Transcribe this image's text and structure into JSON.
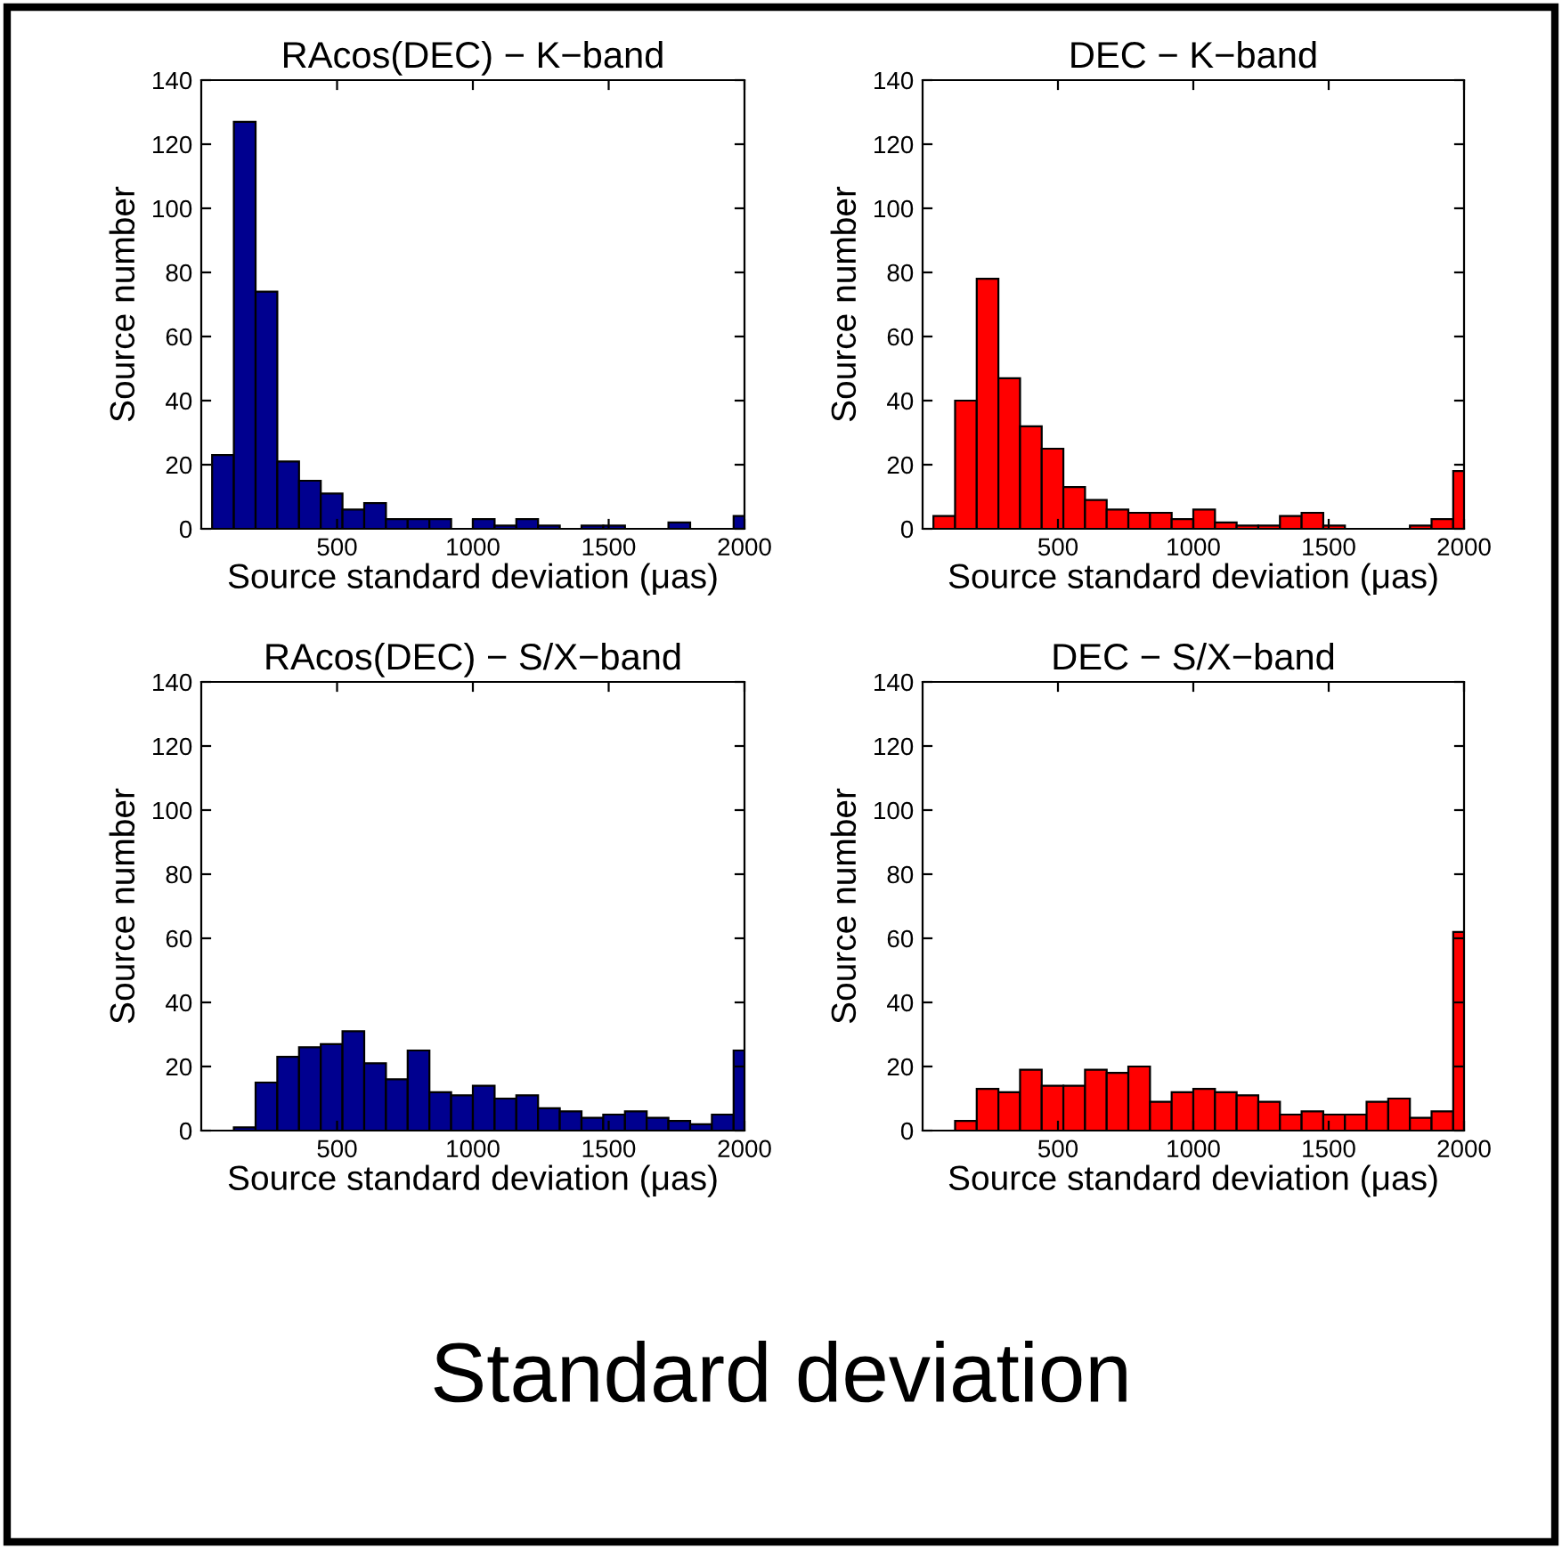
{
  "chart_data": [
    {
      "type": "histogram",
      "title": "RAcos(DEC) − K−band",
      "xlabel": "Source standard deviation (μas)",
      "ylabel": "Source number",
      "color": "#00008f",
      "bins": [
        40,
        120,
        200,
        280,
        360,
        440,
        520,
        600,
        680,
        760,
        840,
        920,
        1000,
        1080,
        1160,
        1240,
        1320,
        1400,
        1480,
        1560,
        1640,
        1720,
        1800,
        1880,
        1960,
        2040
      ],
      "values": [
        23,
        127,
        74,
        21,
        15,
        11,
        6,
        8,
        3,
        3,
        3,
        0,
        3,
        1,
        3,
        1,
        0,
        1,
        1,
        0,
        0,
        2,
        0,
        0,
        4
      ],
      "xlim": [
        0,
        2000
      ],
      "xticks": [
        500,
        1000,
        1500,
        2000
      ],
      "ylim": [
        0,
        140
      ],
      "yticks": [
        0,
        20,
        40,
        60,
        80,
        100,
        120,
        140
      ],
      "grid": false,
      "legend": false
    },
    {
      "type": "histogram",
      "title": "DEC − K−band",
      "xlabel": "Source standard deviation (μas)",
      "ylabel": "Source number",
      "color": "#ff0000",
      "bins": [
        40,
        120,
        200,
        280,
        360,
        440,
        520,
        600,
        680,
        760,
        840,
        920,
        1000,
        1080,
        1160,
        1240,
        1320,
        1400,
        1480,
        1560,
        1640,
        1720,
        1800,
        1880,
        1960,
        2040
      ],
      "values": [
        4,
        40,
        78,
        47,
        32,
        25,
        13,
        9,
        6,
        5,
        5,
        3,
        6,
        2,
        1,
        1,
        4,
        5,
        1,
        0,
        0,
        0,
        1,
        3,
        18
      ],
      "xlim": [
        0,
        2000
      ],
      "xticks": [
        500,
        1000,
        1500,
        2000
      ],
      "ylim": [
        0,
        140
      ],
      "yticks": [
        0,
        20,
        40,
        60,
        80,
        100,
        120,
        140
      ],
      "grid": false,
      "legend": false
    },
    {
      "type": "histogram",
      "title": "RAcos(DEC) − S/X−band",
      "xlabel": "Source standard deviation (μas)",
      "ylabel": "Source number",
      "color": "#00008f",
      "bins": [
        40,
        120,
        200,
        280,
        360,
        440,
        520,
        600,
        680,
        760,
        840,
        920,
        1000,
        1080,
        1160,
        1240,
        1320,
        1400,
        1480,
        1560,
        1640,
        1720,
        1800,
        1880,
        1960,
        2040
      ],
      "values": [
        0,
        1,
        15,
        23,
        26,
        27,
        31,
        21,
        16,
        25,
        12,
        11,
        14,
        10,
        11,
        7,
        6,
        4,
        5,
        6,
        4,
        3,
        2,
        5,
        25
      ],
      "xlim": [
        0,
        2000
      ],
      "xticks": [
        500,
        1000,
        1500,
        2000
      ],
      "ylim": [
        0,
        140
      ],
      "yticks": [
        0,
        20,
        40,
        60,
        80,
        100,
        120,
        140
      ],
      "grid": false,
      "legend": false
    },
    {
      "type": "histogram",
      "title": "DEC − S/X−band",
      "xlabel": "Source standard deviation (μas)",
      "ylabel": "Source number",
      "color": "#ff0000",
      "bins": [
        40,
        120,
        200,
        280,
        360,
        440,
        520,
        600,
        680,
        760,
        840,
        920,
        1000,
        1080,
        1160,
        1240,
        1320,
        1400,
        1480,
        1560,
        1640,
        1720,
        1800,
        1880,
        1960,
        2040
      ],
      "values": [
        0,
        3,
        13,
        12,
        19,
        14,
        14,
        19,
        18,
        20,
        9,
        12,
        13,
        12,
        11,
        9,
        5,
        6,
        5,
        5,
        9,
        10,
        4,
        6,
        62
      ],
      "xlim": [
        0,
        2000
      ],
      "xticks": [
        500,
        1000,
        1500,
        2000
      ],
      "ylim": [
        0,
        140
      ],
      "yticks": [
        0,
        20,
        40,
        60,
        80,
        100,
        120,
        140
      ],
      "grid": false,
      "legend": false,
      "annotations": [
        "Standard deviation"
      ]
    }
  ]
}
